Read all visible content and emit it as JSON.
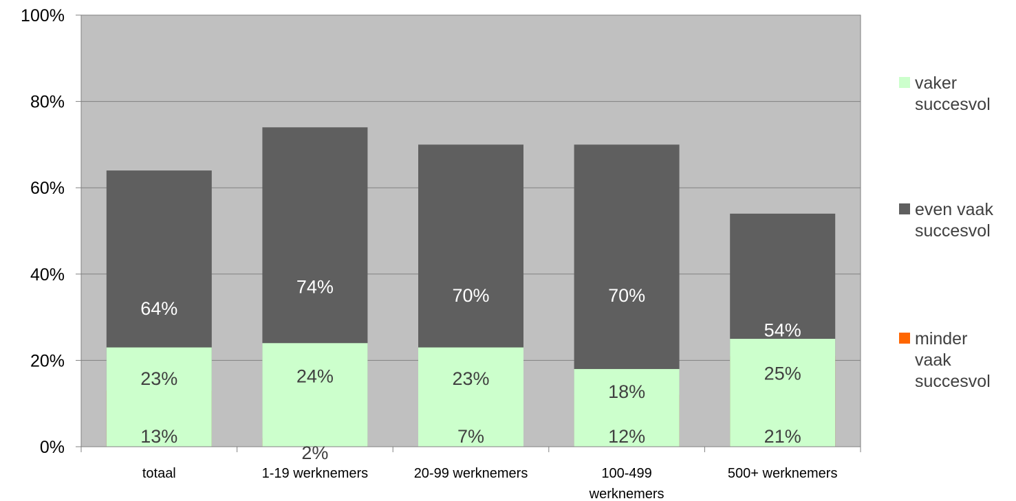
{
  "chart_data": {
    "type": "bar",
    "stacked": true,
    "percent_axis": true,
    "categories": [
      "totaal",
      "1-19 werknemers",
      "20-99 werknemers",
      "100-499 werknemers",
      "500+ werknemers"
    ],
    "category_label_lines": [
      [
        "totaal"
      ],
      [
        "1-19 werknemers"
      ],
      [
        "20-99 werknemers"
      ],
      [
        "100-499",
        "werknemers"
      ],
      [
        "500+ werknemers"
      ]
    ],
    "series": [
      {
        "name": "minder vaak succesvol",
        "legend_lines": [
          "minder",
          "vaak",
          "succesvol"
        ],
        "color": "#FF6600",
        "values": [
          13,
          2,
          7,
          12,
          21
        ],
        "labels": [
          "13%",
          "2%",
          "7%",
          "12%",
          "21%"
        ]
      },
      {
        "name": "even vaak succesvol",
        "legend_lines": [
          "even vaak",
          "succesvol"
        ],
        "color": "#5F5F5F",
        "values": [
          64,
          74,
          70,
          70,
          54
        ],
        "labels": [
          "64%",
          "74%",
          "70%",
          "70%",
          "54%"
        ]
      },
      {
        "name": "vaker succesvol",
        "legend_lines": [
          "vaker",
          "succesvol"
        ],
        "color": "#CCFFCC",
        "values": [
          23,
          24,
          23,
          18,
          25
        ],
        "labels": [
          "23%",
          "24%",
          "23%",
          "18%",
          "25%"
        ]
      }
    ],
    "yticks": [
      "0%",
      "20%",
      "40%",
      "60%",
      "80%",
      "100%"
    ],
    "ylim": [
      0,
      100
    ],
    "grid": true,
    "legend_position": "right",
    "plot_background": "#C0C0C0"
  }
}
